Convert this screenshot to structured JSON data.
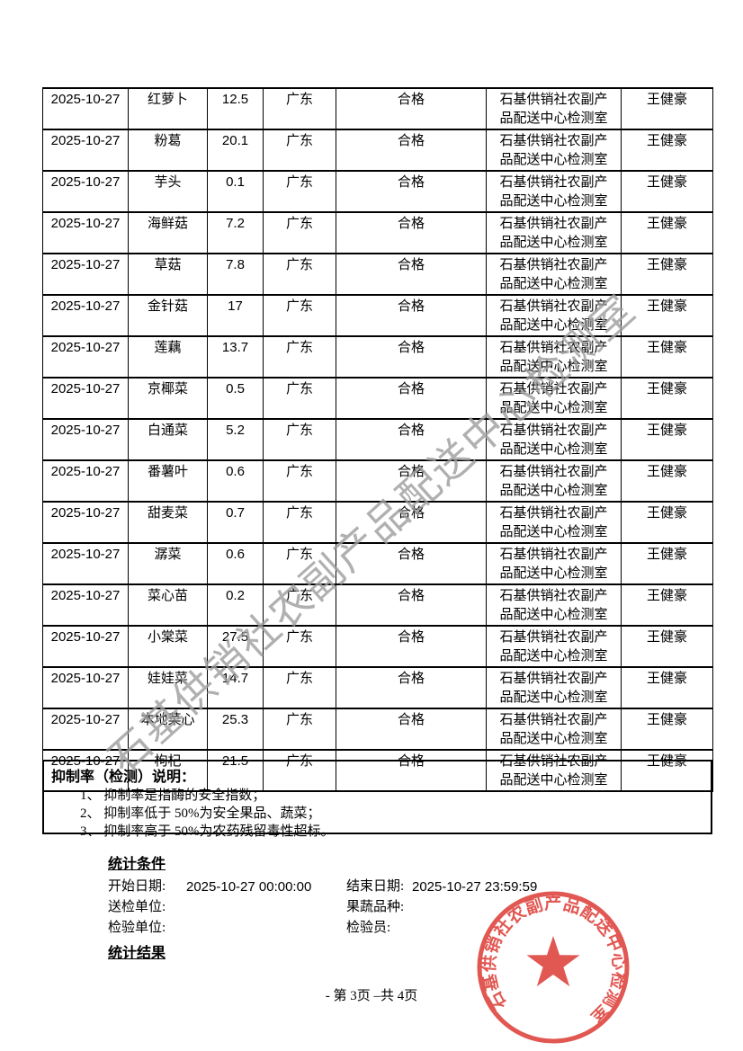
{
  "page": {
    "footer": "- 第 3页 –共 4页"
  },
  "watermark": {
    "text": "石基供销社农副产品配送中心检测室",
    "color": "#9d9d9d"
  },
  "table": {
    "rows": [
      {
        "date": "2025-10-27",
        "product": "红萝卜",
        "value": "12.5",
        "region": "广东",
        "result": "合格",
        "lab_line1": "石基供销社农副产",
        "lab_line2": "品配送中心检测室",
        "inspector": "王健豪"
      },
      {
        "date": "2025-10-27",
        "product": "粉葛",
        "value": "20.1",
        "region": "广东",
        "result": "合格",
        "lab_line1": "石基供销社农副产",
        "lab_line2": "品配送中心检测室",
        "inspector": "王健豪"
      },
      {
        "date": "2025-10-27",
        "product": "芋头",
        "value": "0.1",
        "region": "广东",
        "result": "合格",
        "lab_line1": "石基供销社农副产",
        "lab_line2": "品配送中心检测室",
        "inspector": "王健豪"
      },
      {
        "date": "2025-10-27",
        "product": "海鲜菇",
        "value": "7.2",
        "region": "广东",
        "result": "合格",
        "lab_line1": "石基供销社农副产",
        "lab_line2": "品配送中心检测室",
        "inspector": "王健豪"
      },
      {
        "date": "2025-10-27",
        "product": "草菇",
        "value": "7.8",
        "region": "广东",
        "result": "合格",
        "lab_line1": "石基供销社农副产",
        "lab_line2": "品配送中心检测室",
        "inspector": "王健豪"
      },
      {
        "date": "2025-10-27",
        "product": "金针菇",
        "value": "17",
        "region": "广东",
        "result": "合格",
        "lab_line1": "石基供销社农副产",
        "lab_line2": "品配送中心检测室",
        "inspector": "王健豪"
      },
      {
        "date": "2025-10-27",
        "product": "莲藕",
        "value": "13.7",
        "region": "广东",
        "result": "合格",
        "lab_line1": "石基供销社农副产",
        "lab_line2": "品配送中心检测室",
        "inspector": "王健豪"
      },
      {
        "date": "2025-10-27",
        "product": "京椰菜",
        "value": "0.5",
        "region": "广东",
        "result": "合格",
        "lab_line1": "石基供销社农副产",
        "lab_line2": "品配送中心检测室",
        "inspector": "王健豪"
      },
      {
        "date": "2025-10-27",
        "product": "白通菜",
        "value": "5.2",
        "region": "广东",
        "result": "合格",
        "lab_line1": "石基供销社农副产",
        "lab_line2": "品配送中心检测室",
        "inspector": "王健豪"
      },
      {
        "date": "2025-10-27",
        "product": "番薯叶",
        "value": "0.6",
        "region": "广东",
        "result": "合格",
        "lab_line1": "石基供销社农副产",
        "lab_line2": "品配送中心检测室",
        "inspector": "王健豪"
      },
      {
        "date": "2025-10-27",
        "product": "甜麦菜",
        "value": "0.7",
        "region": "广东",
        "result": "合格",
        "lab_line1": "石基供销社农副产",
        "lab_line2": "品配送中心检测室",
        "inspector": "王健豪"
      },
      {
        "date": "2025-10-27",
        "product": "潺菜",
        "value": "0.6",
        "region": "广东",
        "result": "合格",
        "lab_line1": "石基供销社农副产",
        "lab_line2": "品配送中心检测室",
        "inspector": "王健豪"
      },
      {
        "date": "2025-10-27",
        "product": "菜心苗",
        "value": "0.2",
        "region": "广东",
        "result": "合格",
        "lab_line1": "石基供销社农副产",
        "lab_line2": "品配送中心检测室",
        "inspector": "王健豪"
      },
      {
        "date": "2025-10-27",
        "product": "小棠菜",
        "value": "27.5",
        "region": "广东",
        "result": "合格",
        "lab_line1": "石基供销社农副产",
        "lab_line2": "品配送中心检测室",
        "inspector": "王健豪"
      },
      {
        "date": "2025-10-27",
        "product": "娃娃菜",
        "value": "14.7",
        "region": "广东",
        "result": "合格",
        "lab_line1": "石基供销社农副产",
        "lab_line2": "品配送中心检测室",
        "inspector": "王健豪"
      },
      {
        "date": "2025-10-27",
        "product": "本地菜心",
        "value": "25.3",
        "region": "广东",
        "result": "合格",
        "lab_line1": "石基供销社农副产",
        "lab_line2": "品配送中心检测室",
        "inspector": "王健豪"
      },
      {
        "date": "2025-10-27",
        "product": "枸杞",
        "value": "21.5",
        "region": "广东",
        "result": "合格",
        "lab_line1": "石基供销社农副产",
        "lab_line2": "品配送中心检测室",
        "inspector": "王健豪"
      }
    ]
  },
  "notes": {
    "title": "抑制率（检测）说明：",
    "items": [
      "1、 抑制率是指酶的安全指数；",
      "2、 抑制率低于 50%为安全果品、蔬菜；",
      "3、 抑制率高于 50%为农药残留毒性超标。"
    ]
  },
  "stats": {
    "conditions_title": "统计条件",
    "results_title": "统计结果",
    "fields": [
      {
        "label": "开始日期:",
        "value": "2025-10-27 00:00:00"
      },
      {
        "label": "结束日期:",
        "value": "2025-10-27 23:59:59"
      },
      {
        "label": "送检单位:",
        "value": ""
      },
      {
        "label": "果蔬品种:",
        "value": ""
      },
      {
        "label": "检验单位:",
        "value": ""
      },
      {
        "label": "检验员:",
        "value": ""
      }
    ]
  },
  "stamp": {
    "text": "石基供销社农副产品配送中心检测室",
    "color": "#df4b45"
  }
}
